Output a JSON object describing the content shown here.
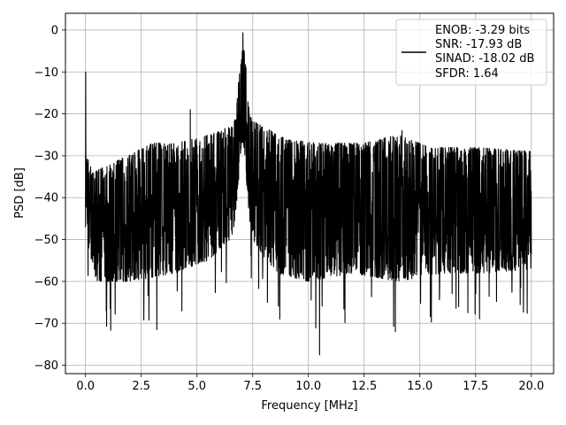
{
  "chart_data": {
    "type": "line",
    "title": "",
    "xlabel": "Frequency [MHz]",
    "ylabel": "PSD [dB]",
    "xlim": [
      -0.9,
      21.0
    ],
    "ylim": [
      -82,
      4
    ],
    "xticks": [
      0.0,
      2.5,
      5.0,
      7.5,
      10.0,
      12.5,
      15.0,
      17.5,
      20.0
    ],
    "xtick_labels": [
      "0.0",
      "2.5",
      "5.0",
      "7.5",
      "10.0",
      "12.5",
      "15.0",
      "17.5",
      "20.0"
    ],
    "yticks": [
      0,
      -10,
      -20,
      -30,
      -40,
      -50,
      -60,
      -70,
      -80
    ],
    "ytick_labels": [
      "0",
      "−10",
      "−20",
      "−30",
      "−40",
      "−50",
      "−60",
      "−70",
      "−80"
    ],
    "grid": true,
    "legend_placement": "upper-right",
    "series": [
      {
        "legend_lines": [
          "ENOB: -3.29 bits",
          "SNR: -17.93 dB",
          "SINAD: -18.02 dB",
          "SFDR: 1.64"
        ],
        "color": "#000000",
        "x_range": [
          0,
          20
        ],
        "peak_frequency": 7.05,
        "peak_value": 0,
        "dc_value": -10,
        "features": [
          {
            "x": 4.7,
            "y": -19
          },
          {
            "x": 7.2,
            "y": -9
          },
          {
            "x": 14.2,
            "y": -24
          },
          {
            "x": 10.5,
            "y": -77.5
          },
          {
            "x": 3.2,
            "y": -71.5
          },
          {
            "x": 13.9,
            "y": -72
          }
        ],
        "envelope_top": [
          [
            0.0,
            -28
          ],
          [
            0.3,
            -34
          ],
          [
            1.5,
            -31
          ],
          [
            3.0,
            -27
          ],
          [
            4.0,
            -27
          ],
          [
            5.5,
            -25
          ],
          [
            6.5,
            -23
          ],
          [
            7.6,
            -22
          ],
          [
            9.0,
            -26
          ],
          [
            10.5,
            -27
          ],
          [
            12.5,
            -27
          ],
          [
            14.0,
            -25
          ],
          [
            15.5,
            -28
          ],
          [
            17.5,
            -28
          ],
          [
            20.0,
            -29
          ]
        ],
        "envelope_bottom": [
          [
            0.0,
            -50
          ],
          [
            0.5,
            -60
          ],
          [
            2.0,
            -60
          ],
          [
            4.0,
            -58
          ],
          [
            5.5,
            -55
          ],
          [
            6.5,
            -50
          ],
          [
            7.0,
            -43
          ],
          [
            7.5,
            -50
          ],
          [
            8.5,
            -58
          ],
          [
            10.0,
            -60
          ],
          [
            12.0,
            -58
          ],
          [
            14.0,
            -60
          ],
          [
            16.0,
            -58
          ],
          [
            18.0,
            -58
          ],
          [
            20.0,
            -57
          ]
        ]
      }
    ]
  }
}
